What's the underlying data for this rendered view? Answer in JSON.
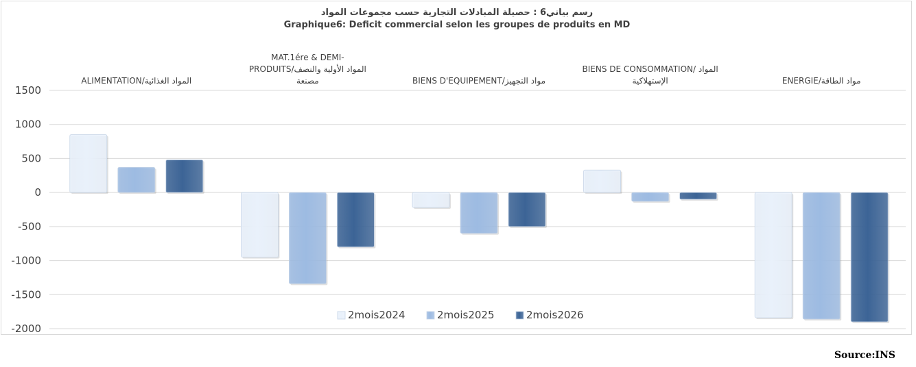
{
  "title_ar": "رسم بياني6 : حصيلة المبادلات التجارية حسب مجموعات المواد",
  "title_fr": "Graphique6: Deficit commercial selon les groupes de produits en MD",
  "source": "Source:INS",
  "colors": {
    "2mois2024": "#e9f1fb",
    "2mois2025": "#9dbbe2",
    "2mois2026": "#3c6496",
    "grid": "#d9d9d9"
  },
  "chart_data": {
    "type": "bar",
    "title": "Graphique6: Deficit commercial selon les groupes de produits en MD",
    "categories": [
      [
        "ALIMENTATION/المواد الغذائية"
      ],
      [
        "MAT.1ére & DEMI-",
        "PRODUITS/المواد الأولية والنصف",
        "مصنعة"
      ],
      [
        "BIENS D'EQUIPEMENT/مواد التجهيز"
      ],
      [
        "BIENS DE CONSOMMATION/ المواد",
        "الإستهلاكية"
      ],
      [
        "ENERGIE/مواد الطاقة"
      ]
    ],
    "series": [
      {
        "name": "2mois2024",
        "values": [
          850,
          -950,
          -220,
          330,
          -1840
        ]
      },
      {
        "name": "2mois2025",
        "values": [
          370,
          -1340,
          -600,
          -130,
          -1860
        ]
      },
      {
        "name": "2mois2026",
        "values": [
          480,
          -800,
          -500,
          -100,
          -1900
        ]
      }
    ],
    "ylim": [
      -2000,
      1500
    ],
    "yticks": [
      1500,
      1000,
      500,
      0,
      -500,
      -1000,
      -1500,
      -2000
    ],
    "xlabel": "",
    "ylabel": "",
    "grid": true,
    "legend": "bottom-center"
  }
}
